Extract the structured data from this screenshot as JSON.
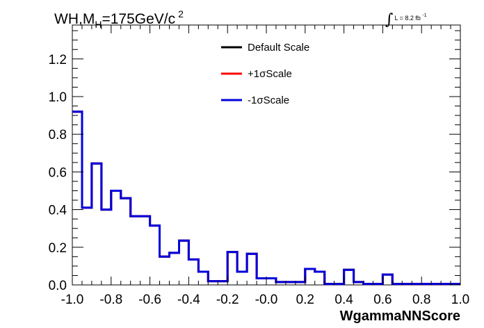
{
  "header": {
    "title_main": "WH,M",
    "title_sub": "H",
    "title_rest": "=175GeV/c",
    "title_sup": "2",
    "lumi_text": "L = 8.2 fb",
    "lumi_sup": "-1"
  },
  "colors": {
    "default": "#000000",
    "plus": "#ff0000",
    "minus": "#0000dd"
  },
  "chart_data": {
    "type": "line",
    "style": "step-histogram",
    "xlabel": "WgammaNNScore",
    "ylabel": "",
    "xlim": [
      -1.0,
      1.0
    ],
    "ylim": [
      0.0,
      1.38
    ],
    "xticks": [
      "-1.0",
      "-0.8",
      "-0.6",
      "-0.4",
      "-0.2",
      "-0.0",
      "0.2",
      "0.4",
      "0.6",
      "0.8",
      "1.0"
    ],
    "yticks": [
      "0.0",
      "0.2",
      "0.4",
      "0.6",
      "0.8",
      "1.0",
      "1.2"
    ],
    "bin_edges": [
      -1.0,
      -0.95,
      -0.9,
      -0.85,
      -0.8,
      -0.75,
      -0.7,
      -0.65,
      -0.6,
      -0.55,
      -0.5,
      -0.45,
      -0.4,
      -0.35,
      -0.3,
      -0.25,
      -0.2,
      -0.15,
      -0.1,
      -0.05,
      0.0,
      0.05,
      0.1,
      0.15,
      0.2,
      0.25,
      0.3,
      0.35,
      0.4,
      0.45,
      0.5,
      0.55,
      0.6,
      0.65,
      0.7,
      0.75,
      0.8,
      0.85,
      0.9,
      0.95,
      1.0
    ],
    "legend_position": "top-center",
    "grid": false,
    "series": [
      {
        "name": "Default Scale",
        "color": "#000000",
        "values": [
          0.92,
          0.41,
          0.645,
          0.4,
          0.5,
          0.46,
          0.365,
          0.365,
          0.315,
          0.15,
          0.17,
          0.235,
          0.135,
          0.07,
          0.02,
          0.02,
          0.175,
          0.07,
          0.165,
          0.035,
          0.035,
          0.015,
          0.015,
          0.015,
          0.085,
          0.07,
          0.005,
          0.005,
          0.08,
          0.015,
          0.005,
          0.005,
          0.055,
          0.005,
          0.005,
          0.005,
          0.005,
          0.005,
          0.005,
          0.005
        ]
      },
      {
        "name": "+1σScale",
        "color": "#ff0000",
        "values": [
          0.92,
          0.41,
          0.645,
          0.4,
          0.5,
          0.46,
          0.365,
          0.365,
          0.315,
          0.15,
          0.17,
          0.235,
          0.135,
          0.07,
          0.02,
          0.02,
          0.175,
          0.07,
          0.165,
          0.035,
          0.035,
          0.015,
          0.015,
          0.015,
          0.085,
          0.07,
          0.005,
          0.005,
          0.08,
          0.015,
          0.005,
          0.005,
          0.055,
          0.005,
          0.005,
          0.005,
          0.005,
          0.005,
          0.005,
          0.005
        ]
      },
      {
        "name": "-1σScale",
        "color": "#0000dd",
        "values": [
          0.92,
          0.41,
          0.645,
          0.4,
          0.5,
          0.46,
          0.365,
          0.365,
          0.315,
          0.15,
          0.17,
          0.235,
          0.135,
          0.07,
          0.02,
          0.02,
          0.175,
          0.07,
          0.165,
          0.035,
          0.035,
          0.015,
          0.015,
          0.015,
          0.085,
          0.07,
          0.005,
          0.005,
          0.08,
          0.015,
          0.005,
          0.005,
          0.055,
          0.005,
          0.005,
          0.005,
          0.005,
          0.005,
          0.005,
          0.005
        ]
      }
    ]
  }
}
